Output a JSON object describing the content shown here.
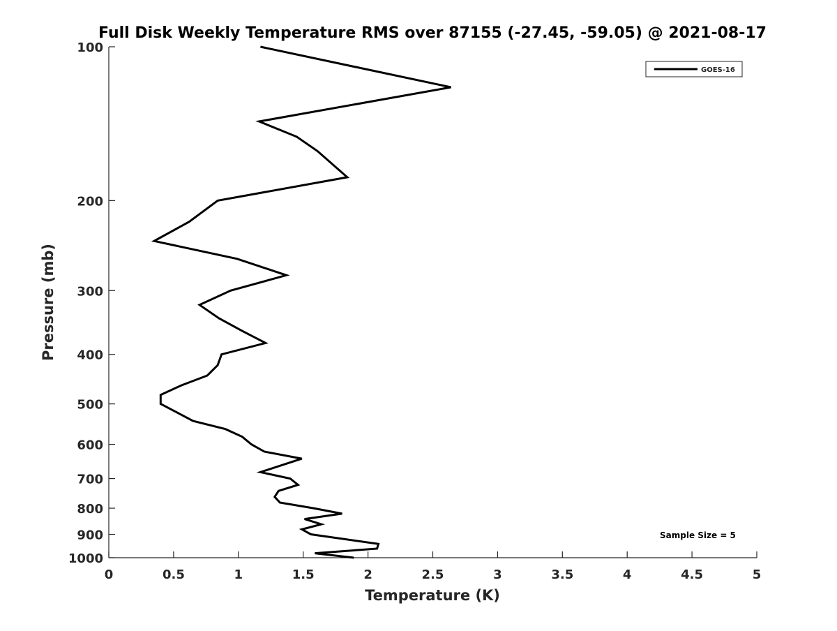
{
  "chart_data": {
    "type": "line",
    "title": "Full Disk Weekly Temperature RMS over 87155 (-27.45, -59.05) @ 2021-08-17",
    "xlabel": "Temperature (K)",
    "ylabel": "Pressure (mb)",
    "xlim": [
      0,
      5
    ],
    "ylim": [
      100,
      1000
    ],
    "yscale": "log",
    "yreversed": true,
    "grid": false,
    "x_ticks": [
      0,
      0.5,
      1,
      1.5,
      2,
      2.5,
      3,
      3.5,
      4,
      4.5,
      5
    ],
    "x_tick_labels": [
      "0",
      "0.5",
      "1",
      "1.5",
      "2",
      "2.5",
      "3",
      "3.5",
      "4",
      "4.5",
      "5"
    ],
    "y_ticks": [
      100,
      200,
      300,
      400,
      500,
      600,
      700,
      800,
      900,
      1000
    ],
    "y_tick_labels": [
      "100",
      "200",
      "300",
      "400",
      "500",
      "600",
      "700",
      "800",
      "900",
      "1000"
    ],
    "legend": {
      "placement": "top-right",
      "entries": [
        "GOES-16"
      ]
    },
    "annotation": "Sample Size = 5",
    "series": [
      {
        "name": "GOES-16",
        "color": "#000000",
        "pressure": [
          100,
          120,
          140,
          150,
          160,
          180,
          200,
          220,
          240,
          260,
          280,
          300,
          320,
          340,
          360,
          380,
          400,
          420,
          440,
          460,
          480,
          500,
          540,
          560,
          580,
          600,
          620,
          640,
          680,
          700,
          720,
          740,
          760,
          780,
          800,
          820,
          840,
          860,
          880,
          900,
          940,
          960,
          980,
          1000
        ],
        "temperature": [
          1.17,
          2.64,
          1.16,
          1.45,
          1.61,
          1.84,
          0.84,
          0.62,
          0.35,
          0.99,
          1.37,
          0.94,
          0.7,
          0.85,
          1.03,
          1.21,
          0.87,
          0.84,
          0.76,
          0.56,
          0.4,
          0.4,
          0.65,
          0.9,
          1.03,
          1.1,
          1.2,
          1.49,
          1.17,
          1.4,
          1.46,
          1.31,
          1.28,
          1.32,
          1.58,
          1.8,
          1.51,
          1.64,
          1.49,
          1.56,
          2.08,
          2.07,
          1.59,
          1.89
        ]
      }
    ]
  }
}
